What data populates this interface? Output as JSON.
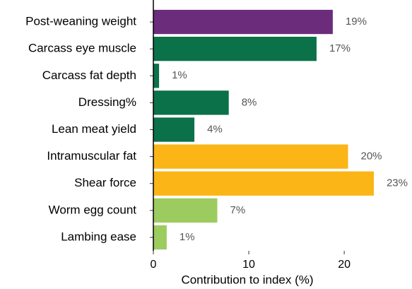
{
  "chart_data": {
    "type": "bar",
    "orientation": "horizontal",
    "x_label": "Contribution to index (%)",
    "categories": [
      "Post-weaning weight",
      "Carcass eye muscle",
      "Carcass fat depth",
      "Dressing%",
      "Lean meat yield",
      "Intramuscular fat",
      "Shear force",
      "Worm egg count",
      "Lambing ease"
    ],
    "values": [
      18.8,
      17.1,
      0.6,
      7.9,
      4.3,
      20.4,
      23.1,
      6.7,
      1.4
    ],
    "value_labels": [
      "19%",
      "17%",
      "1%",
      "8%",
      "4%",
      "20%",
      "23%",
      "7%",
      "1%"
    ],
    "colors": [
      "#6b2d7b",
      "#0b7148",
      "#0b7148",
      "#0b7148",
      "#0b7148",
      "#fbb516",
      "#fbb516",
      "#9ccb5f",
      "#9ccb5f"
    ],
    "xlim": [
      0,
      27.1
    ],
    "xticks": [
      0,
      10,
      20
    ]
  }
}
